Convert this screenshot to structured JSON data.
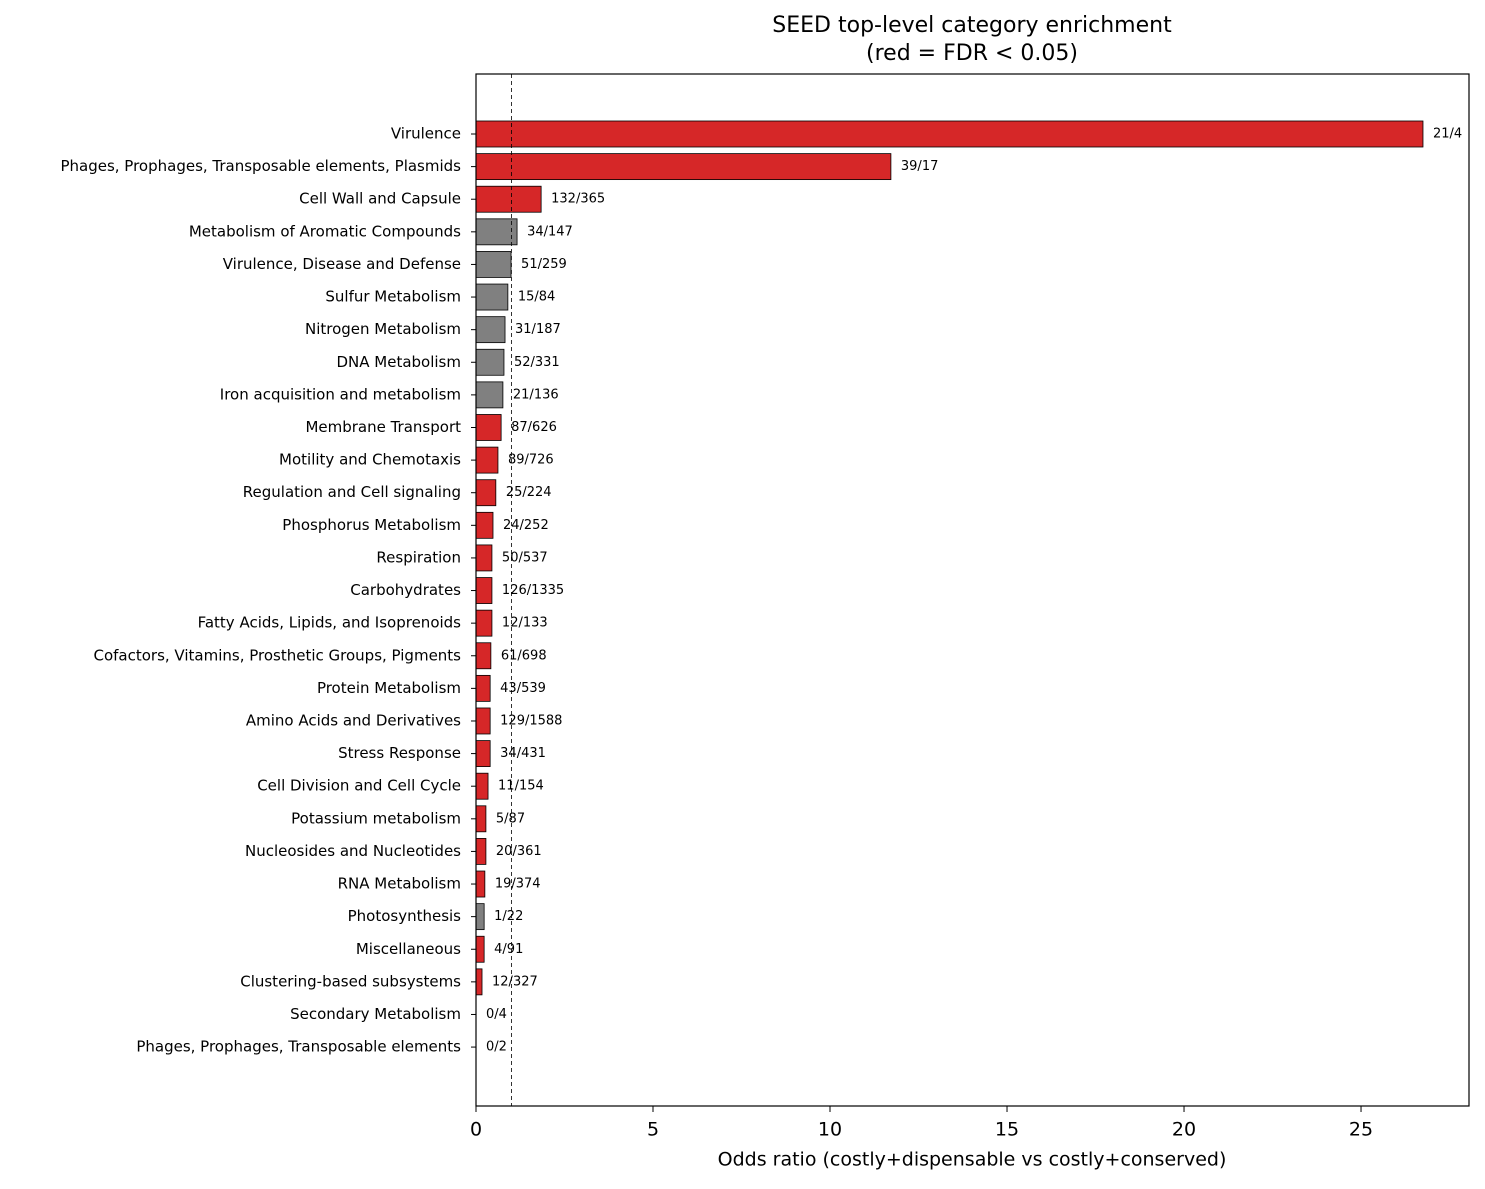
{
  "chart_data": {
    "type": "barh",
    "title": "SEED top-level category enrichment",
    "subtitle": "(red = FDR < 0.05)",
    "x_label": "Odds ratio (costly+dispensable vs costly+conserved)",
    "categories": [
      "Virulence",
      "Phages, Prophages, Transposable elements, Plasmids",
      "Cell Wall and Capsule",
      "Metabolism of Aromatic Compounds",
      "Virulence, Disease and Defense",
      "Sulfur Metabolism",
      "Nitrogen Metabolism",
      "DNA Metabolism",
      "Iron acquisition and metabolism",
      "Membrane Transport",
      "Motility and Chemotaxis",
      "Regulation and Cell signaling",
      "Phosphorus Metabolism",
      "Respiration",
      "Carbohydrates",
      "Fatty Acids, Lipids, and Isoprenoids",
      "Cofactors, Vitamins, Prosthetic Groups, Pigments",
      "Protein Metabolism",
      "Amino Acids and Derivatives",
      "Stress Response",
      "Cell Division and Cell Cycle",
      "Potassium metabolism",
      "Nucleosides and Nucleotides",
      "RNA Metabolism",
      "Photosynthesis",
      "Miscellaneous",
      "Clustering-based subsystems",
      "Secondary Metabolism",
      "Phages, Prophages, Transposable elements"
    ],
    "values": [
      26.75,
      11.72,
      1.84,
      1.16,
      0.99,
      0.9,
      0.82,
      0.79,
      0.76,
      0.71,
      0.62,
      0.56,
      0.48,
      0.45,
      0.45,
      0.45,
      0.42,
      0.4,
      0.4,
      0.4,
      0.34,
      0.28,
      0.28,
      0.25,
      0.23,
      0.23,
      0.17,
      0,
      0
    ],
    "bar_labels": [
      "21/4",
      "39/17",
      "132/365",
      "34/147",
      "51/259",
      "15/84",
      "31/187",
      "52/331",
      "21/136",
      "87/626",
      "89/726",
      "25/224",
      "24/252",
      "50/537",
      "126/1335",
      "12/133",
      "61/698",
      "43/539",
      "129/1588",
      "34/431",
      "11/154",
      "5/87",
      "20/361",
      "19/374",
      "1/22",
      "4/91",
      "12/327",
      "0/4",
      "0/2"
    ],
    "colors": [
      "#d62728",
      "#d62728",
      "#d62728",
      "#808080",
      "#808080",
      "#808080",
      "#808080",
      "#808080",
      "#808080",
      "#d62728",
      "#d62728",
      "#d62728",
      "#d62728",
      "#d62728",
      "#d62728",
      "#d62728",
      "#d62728",
      "#d62728",
      "#d62728",
      "#d62728",
      "#d62728",
      "#d62728",
      "#d62728",
      "#d62728",
      "#808080",
      "#d62728",
      "#d62728",
      "#808080",
      "#808080"
    ],
    "reference_line": 1,
    "xlim": [
      0,
      28.05
    ],
    "xticks": [
      0,
      5,
      10,
      15,
      20,
      25
    ]
  }
}
